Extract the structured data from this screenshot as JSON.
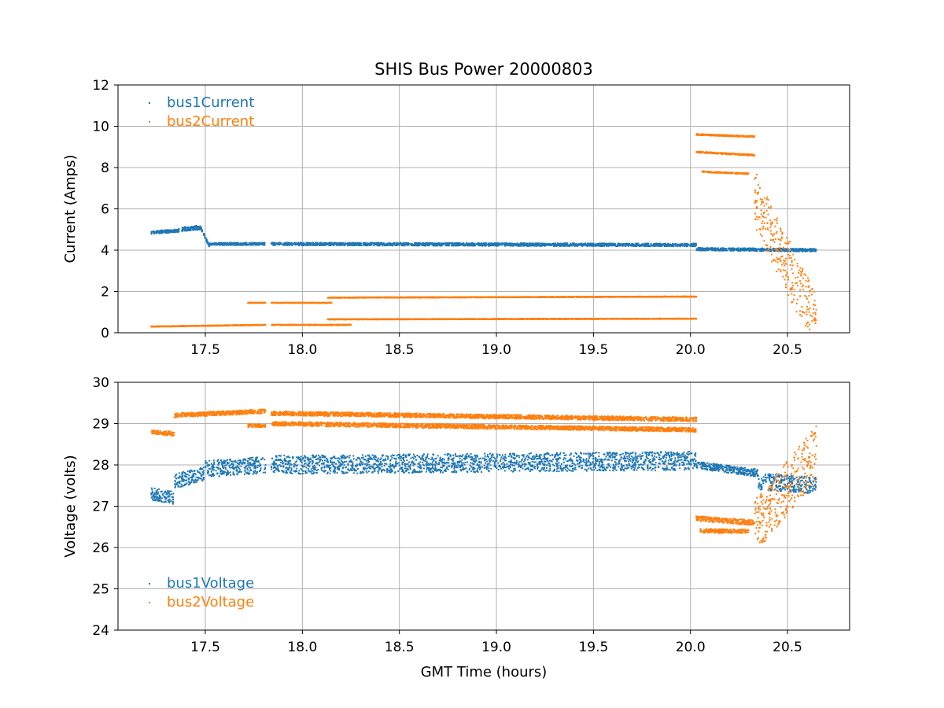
{
  "figure": {
    "title": "SHIS Bus Power 20000803"
  },
  "colors": {
    "series1": "#1f77b4",
    "series2": "#ff7f0e",
    "grid": "#b0b0b0"
  },
  "chart_data": [
    {
      "type": "scatter",
      "title": "SHIS Bus Power 20000803",
      "xlabel": "",
      "ylabel": "Current (Amps)",
      "xlim": [
        17.05,
        20.82
      ],
      "ylim": [
        0,
        12
      ],
      "xticks": [
        17.5,
        18.0,
        18.5,
        19.0,
        19.5,
        20.0,
        20.5
      ],
      "xtick_labels": [
        "17.5",
        "18.0",
        "18.5",
        "19.0",
        "19.5",
        "20.0",
        "20.5"
      ],
      "yticks": [
        0,
        2,
        4,
        6,
        8,
        10,
        12
      ],
      "ytick_labels": [
        "0",
        "2",
        "4",
        "6",
        "8",
        "10",
        "12"
      ],
      "grid": true,
      "legend": "upper left",
      "series": [
        {
          "name": "bus1Current",
          "color": "#1f77b4",
          "segments": [
            {
              "x_start": 17.22,
              "x_end": 17.36,
              "y_start": 4.85,
              "y_end": 4.95,
              "spread": 0.15
            },
            {
              "x_start": 17.36,
              "x_end": 17.48,
              "y_start": 5.0,
              "y_end": 5.1,
              "spread": 0.2
            },
            {
              "x_start": 17.48,
              "x_end": 17.52,
              "y_start": 5.0,
              "y_end": 4.2,
              "spread": 0.1
            },
            {
              "x_start": 17.52,
              "x_end": 17.81,
              "y_start": 4.3,
              "y_end": 4.3,
              "spread": 0.12
            },
            {
              "x_start": 17.84,
              "x_end": 20.03,
              "y_start": 4.3,
              "y_end": 4.25,
              "spread": 0.14
            },
            {
              "x_start": 20.03,
              "x_end": 20.65,
              "y_start": 4.05,
              "y_end": 4.0,
              "spread": 0.14
            }
          ]
        },
        {
          "name": "bus2Current",
          "color": "#ff7f0e",
          "segments": [
            {
              "x_start": 17.22,
              "x_end": 17.81,
              "y_start": 0.3,
              "y_end": 0.38,
              "spread": 0.03
            },
            {
              "x_start": 17.84,
              "x_end": 18.25,
              "y_start": 0.38,
              "y_end": 0.38,
              "spread": 0.03
            },
            {
              "x_start": 17.72,
              "x_end": 17.81,
              "y_start": 1.45,
              "y_end": 1.45,
              "spread": 0.02
            },
            {
              "x_start": 17.84,
              "x_end": 18.15,
              "y_start": 1.45,
              "y_end": 1.45,
              "spread": 0.02
            },
            {
              "x_start": 18.13,
              "x_end": 20.03,
              "y_start": 1.7,
              "y_end": 1.75,
              "spread": 0.03
            },
            {
              "x_start": 18.13,
              "x_end": 20.03,
              "y_start": 0.65,
              "y_end": 0.68,
              "spread": 0.03
            },
            {
              "x_start": 20.03,
              "x_end": 20.33,
              "y_start": 9.6,
              "y_end": 9.5,
              "spread": 0.06
            },
            {
              "x_start": 20.03,
              "x_end": 20.33,
              "y_start": 8.75,
              "y_end": 8.6,
              "spread": 0.06
            },
            {
              "x_start": 20.06,
              "x_end": 20.3,
              "y_start": 7.8,
              "y_end": 7.7,
              "spread": 0.05
            },
            {
              "x_start": 20.33,
              "x_end": 20.65,
              "y_start": 6.5,
              "y_end": 0.4,
              "spread": 2.8
            }
          ]
        }
      ]
    },
    {
      "type": "scatter",
      "title": "",
      "xlabel": "GMT Time (hours)",
      "ylabel": "Voltage (volts)",
      "xlim": [
        17.05,
        20.82
      ],
      "ylim": [
        24,
        30
      ],
      "xticks": [
        17.5,
        18.0,
        18.5,
        19.0,
        19.5,
        20.0,
        20.5
      ],
      "xtick_labels": [
        "17.5",
        "18.0",
        "18.5",
        "19.0",
        "19.5",
        "20.0",
        "20.5"
      ],
      "yticks": [
        24,
        25,
        26,
        27,
        28,
        29,
        30
      ],
      "ytick_labels": [
        "24",
        "25",
        "26",
        "27",
        "28",
        "29",
        "30"
      ],
      "grid": true,
      "legend": "lower left",
      "series": [
        {
          "name": "bus1Voltage",
          "color": "#1f77b4",
          "segments": [
            {
              "x_start": 17.22,
              "x_end": 17.34,
              "y_start": 27.3,
              "y_end": 27.2,
              "spread": 0.3
            },
            {
              "x_start": 17.34,
              "x_end": 17.5,
              "y_start": 27.6,
              "y_end": 27.8,
              "spread": 0.35
            },
            {
              "x_start": 17.5,
              "x_end": 17.81,
              "y_start": 27.9,
              "y_end": 28.0,
              "spread": 0.4
            },
            {
              "x_start": 17.84,
              "x_end": 20.03,
              "y_start": 28.0,
              "y_end": 28.1,
              "spread": 0.45
            },
            {
              "x_start": 20.03,
              "x_end": 20.35,
              "y_start": 28.0,
              "y_end": 27.8,
              "spread": 0.18
            },
            {
              "x_start": 20.35,
              "x_end": 20.65,
              "y_start": 27.6,
              "y_end": 27.5,
              "spread": 0.4
            }
          ]
        },
        {
          "name": "bus2Voltage",
          "color": "#ff7f0e",
          "segments": [
            {
              "x_start": 17.22,
              "x_end": 17.34,
              "y_start": 28.8,
              "y_end": 28.75,
              "spread": 0.1
            },
            {
              "x_start": 17.34,
              "x_end": 17.81,
              "y_start": 29.2,
              "y_end": 29.3,
              "spread": 0.1
            },
            {
              "x_start": 17.72,
              "x_end": 17.81,
              "y_start": 28.95,
              "y_end": 28.95,
              "spread": 0.08
            },
            {
              "x_start": 17.84,
              "x_end": 20.03,
              "y_start": 29.25,
              "y_end": 29.1,
              "spread": 0.1
            },
            {
              "x_start": 17.84,
              "x_end": 20.03,
              "y_start": 29.0,
              "y_end": 28.85,
              "spread": 0.1
            },
            {
              "x_start": 20.03,
              "x_end": 20.33,
              "y_start": 26.7,
              "y_end": 26.6,
              "spread": 0.12
            },
            {
              "x_start": 20.05,
              "x_end": 20.3,
              "y_start": 26.4,
              "y_end": 26.4,
              "spread": 0.1
            },
            {
              "x_start": 20.33,
              "x_end": 20.65,
              "y_start": 26.5,
              "y_end": 28.3,
              "spread": 1.3
            }
          ]
        }
      ]
    }
  ]
}
